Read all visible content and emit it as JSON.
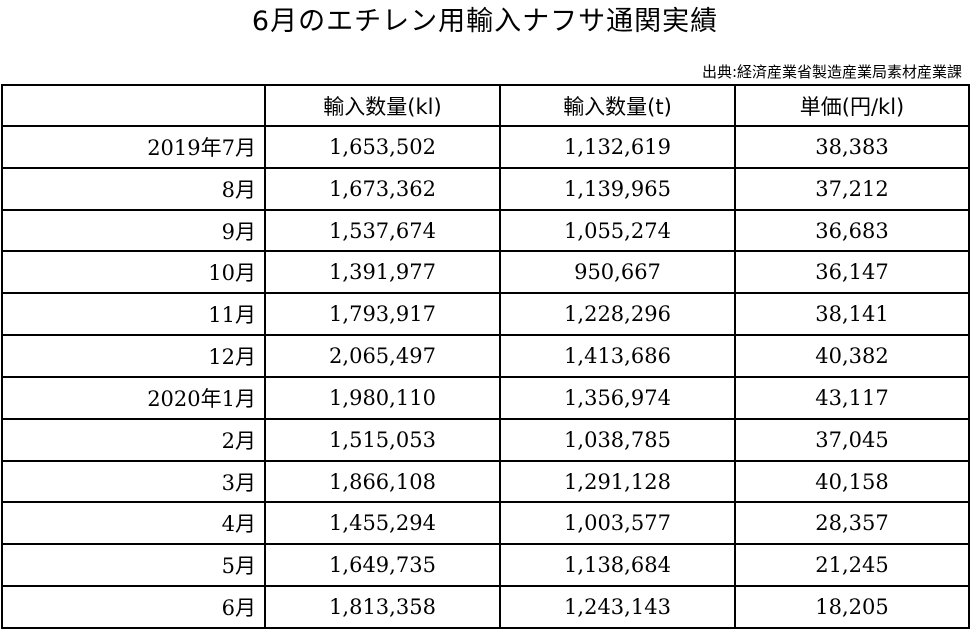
{
  "title": "6月のエチレン用輸入ナフサ通関実績",
  "source": "出典:経済産業省製造産業局素材産業課",
  "table": {
    "headers": [
      "",
      "輸入数量(kl)",
      "輸入数量(t)",
      "単価(円/kl)"
    ],
    "rows": [
      [
        "2019年7月",
        "1,653,502",
        "1,132,619",
        "38,383"
      ],
      [
        "8月",
        "1,673,362",
        "1,139,965",
        "37,212"
      ],
      [
        "9月",
        "1,537,674",
        "1,055,274",
        "36,683"
      ],
      [
        "10月",
        "1,391,977",
        "950,667",
        "36,147"
      ],
      [
        "11月",
        "1,793,917",
        "1,228,296",
        "38,141"
      ],
      [
        "12月",
        "2,065,497",
        "1,413,686",
        "40,382"
      ],
      [
        "2020年1月",
        "1,980,110",
        "1,356,974",
        "43,117"
      ],
      [
        "2月",
        "1,515,053",
        "1,038,785",
        "37,045"
      ],
      [
        "3月",
        "1,866,108",
        "1,291,128",
        "40,158"
      ],
      [
        "4月",
        "1,455,294",
        "1,003,577",
        "28,357"
      ],
      [
        "5月",
        "1,649,735",
        "1,138,684",
        "21,245"
      ],
      [
        "6月",
        "1,813,358",
        "1,243,143",
        "18,205"
      ]
    ]
  }
}
